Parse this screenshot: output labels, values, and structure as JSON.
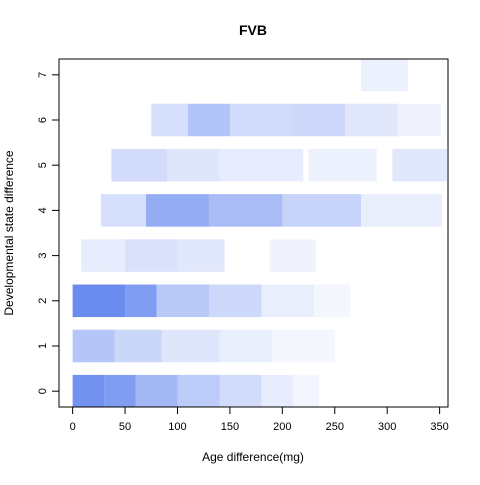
{
  "chart_data": {
    "type": "heatmap",
    "title": "FVB",
    "xlabel": "Age difference(mg)",
    "ylabel": "Developmental state difference",
    "xlim": [
      -13,
      358
    ],
    "ylim": [
      -0.35,
      7.35
    ],
    "x_ticks": [
      "0",
      "50",
      "100",
      "150",
      "200",
      "250",
      "300",
      "350"
    ],
    "y_ticks": [
      "0",
      "1",
      "2",
      "3",
      "4",
      "5",
      "6",
      "7"
    ],
    "color": "#6b8cef",
    "band_height": 0.72,
    "rows": [
      {
        "state": 0,
        "segments": [
          {
            "x0": 0,
            "x1": 30,
            "density": 0.95
          },
          {
            "x0": 30,
            "x1": 60,
            "density": 0.85
          },
          {
            "x0": 60,
            "x1": 100,
            "density": 0.62
          },
          {
            "x0": 100,
            "x1": 140,
            "density": 0.45
          },
          {
            "x0": 140,
            "x1": 180,
            "density": 0.3
          },
          {
            "x0": 180,
            "x1": 210,
            "density": 0.16
          },
          {
            "x0": 210,
            "x1": 235,
            "density": 0.08
          }
        ]
      },
      {
        "state": 1,
        "segments": [
          {
            "x0": 0,
            "x1": 40,
            "density": 0.5
          },
          {
            "x0": 40,
            "x1": 85,
            "density": 0.35
          },
          {
            "x0": 85,
            "x1": 140,
            "density": 0.22
          },
          {
            "x0": 140,
            "x1": 190,
            "density": 0.15
          },
          {
            "x0": 190,
            "x1": 250,
            "density": 0.07
          }
        ]
      },
      {
        "state": 2,
        "segments": [
          {
            "x0": 0,
            "x1": 50,
            "density": 1.0
          },
          {
            "x0": 50,
            "x1": 80,
            "density": 0.85
          },
          {
            "x0": 80,
            "x1": 130,
            "density": 0.48
          },
          {
            "x0": 130,
            "x1": 180,
            "density": 0.34
          },
          {
            "x0": 180,
            "x1": 230,
            "density": 0.15
          },
          {
            "x0": 230,
            "x1": 265,
            "density": 0.07
          }
        ]
      },
      {
        "state": 3,
        "segments": [
          {
            "x0": 8,
            "x1": 50,
            "density": 0.16
          },
          {
            "x0": 50,
            "x1": 100,
            "density": 0.25
          },
          {
            "x0": 100,
            "x1": 145,
            "density": 0.2
          },
          {
            "x0": 188,
            "x1": 232,
            "density": 0.1
          }
        ]
      },
      {
        "state": 4,
        "segments": [
          {
            "x0": 27,
            "x1": 70,
            "density": 0.28
          },
          {
            "x0": 70,
            "x1": 130,
            "density": 0.72
          },
          {
            "x0": 130,
            "x1": 200,
            "density": 0.58
          },
          {
            "x0": 200,
            "x1": 275,
            "density": 0.38
          },
          {
            "x0": 275,
            "x1": 352,
            "density": 0.15
          }
        ]
      },
      {
        "state": 5,
        "segments": [
          {
            "x0": 37,
            "x1": 90,
            "density": 0.3
          },
          {
            "x0": 90,
            "x1": 140,
            "density": 0.22
          },
          {
            "x0": 140,
            "x1": 220,
            "density": 0.16
          },
          {
            "x0": 225,
            "x1": 290,
            "density": 0.12
          },
          {
            "x0": 305,
            "x1": 360,
            "density": 0.2
          },
          {
            "x0": 360,
            "x1": 380,
            "density": 0.08
          },
          {
            "x0": 385,
            "x1": 402,
            "density": 0.18
          }
        ]
      },
      {
        "state": 6,
        "segments": [
          {
            "x0": 75,
            "x1": 110,
            "density": 0.28
          },
          {
            "x0": 110,
            "x1": 150,
            "density": 0.52
          },
          {
            "x0": 150,
            "x1": 210,
            "density": 0.3
          },
          {
            "x0": 210,
            "x1": 260,
            "density": 0.34
          },
          {
            "x0": 260,
            "x1": 310,
            "density": 0.2
          },
          {
            "x0": 310,
            "x1": 351,
            "density": 0.1
          }
        ]
      },
      {
        "state": 7,
        "segments": [
          {
            "x0": 275,
            "x1": 320,
            "density": 0.12
          }
        ]
      }
    ]
  }
}
